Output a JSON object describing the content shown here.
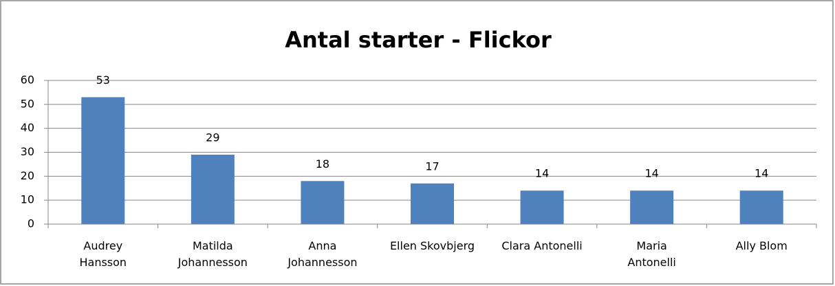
{
  "chart_data": {
    "type": "bar",
    "title": "Antal starter - Flickor",
    "categories": [
      "Audrey\nHansson",
      "Matilda\nJohannesson",
      "Anna\nJohannesson",
      "Ellen Skovbjerg",
      "Clara Antonelli",
      "Maria\nAntonelli",
      "Ally Blom"
    ],
    "values": [
      53,
      29,
      18,
      17,
      14,
      14,
      14
    ],
    "color": "#4f81bd",
    "ylim": [
      0,
      60
    ],
    "yticks": [
      0,
      10,
      20,
      30,
      40,
      50,
      60
    ],
    "grid": true
  }
}
